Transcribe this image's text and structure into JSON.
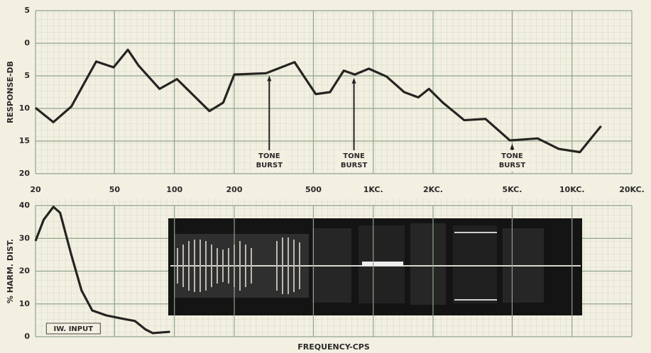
{
  "chart_data": [
    {
      "type": "line",
      "y_label": "RESPONSE-DB",
      "log_x": true,
      "grid": true,
      "xlim": [
        20,
        20000
      ],
      "xticks": [
        20,
        50,
        100,
        200,
        500,
        {
          "value": 1000,
          "label": "1KC."
        },
        {
          "value": 2000,
          "label": "2KC."
        },
        {
          "value": 5000,
          "label": "5KC."
        },
        {
          "value": 10000,
          "label": "10KC."
        },
        {
          "value": 20000,
          "label": "20KC."
        }
      ],
      "ylim": [
        -20,
        5
      ],
      "yticks": [
        5,
        0,
        {
          "value": -5,
          "label": "5"
        },
        {
          "value": -10,
          "label": "10"
        },
        {
          "value": -15,
          "label": "15"
        },
        {
          "value": -20,
          "label": "20"
        }
      ],
      "series": [
        {
          "color": "#262422",
          "x": [
            20,
            24.6,
            30.3,
            40.4,
            49.4,
            58.3,
            65.9,
            84.2,
            103,
            150,
            176,
            200,
            289,
            402,
            514,
            606,
            711,
            808,
            950,
            1166,
            1432,
            1686,
            1907,
            2240,
            2870,
            3670,
            4870,
            6720,
            8580,
            10960,
            14000
          ],
          "values": [
            -9.9,
            -12.1,
            -9.7,
            -2.8,
            -3.7,
            -1.0,
            -3.4,
            -7.0,
            -5.5,
            -10.4,
            -9.1,
            -4.8,
            -4.6,
            -2.9,
            -7.8,
            -7.5,
            -4.2,
            -4.8,
            -3.9,
            -5.1,
            -7.5,
            -8.3,
            -7.0,
            -9.1,
            -11.8,
            -11.6,
            -14.9,
            -14.6,
            -16.2,
            -16.7,
            -12.7
          ]
        }
      ],
      "annotations": [
        {
          "text": [
            "TONE",
            "BURST"
          ],
          "x": 300
        },
        {
          "text": [
            "TONE",
            "BURST"
          ],
          "x": 800
        },
        {
          "text": [
            "TONE",
            "BURST"
          ],
          "x": 5000
        }
      ]
    },
    {
      "type": "line",
      "y_label": "% HARM. DIST.",
      "x_label": "FREQUENCY-CPS",
      "log_x": true,
      "grid": true,
      "xlim": [
        20,
        20000
      ],
      "ylim": [
        0,
        40
      ],
      "yticks": [
        0,
        10,
        20,
        30,
        40
      ],
      "series": [
        {
          "color": "#262422",
          "x": [
            20,
            22,
            24.6,
            26.6,
            30.3,
            34.1,
            38.6,
            45.4,
            55.9,
            63.2,
            71.6,
            77.8,
            95
          ],
          "values": [
            29.2,
            35.7,
            39.6,
            37.8,
            24.9,
            14.1,
            8.0,
            6.5,
            5.4,
            4.8,
            2.2,
            1.1,
            1.5
          ]
        }
      ],
      "annotations": [
        {
          "text": [
            "IW. INPUT"
          ],
          "x": 31
        }
      ]
    }
  ]
}
